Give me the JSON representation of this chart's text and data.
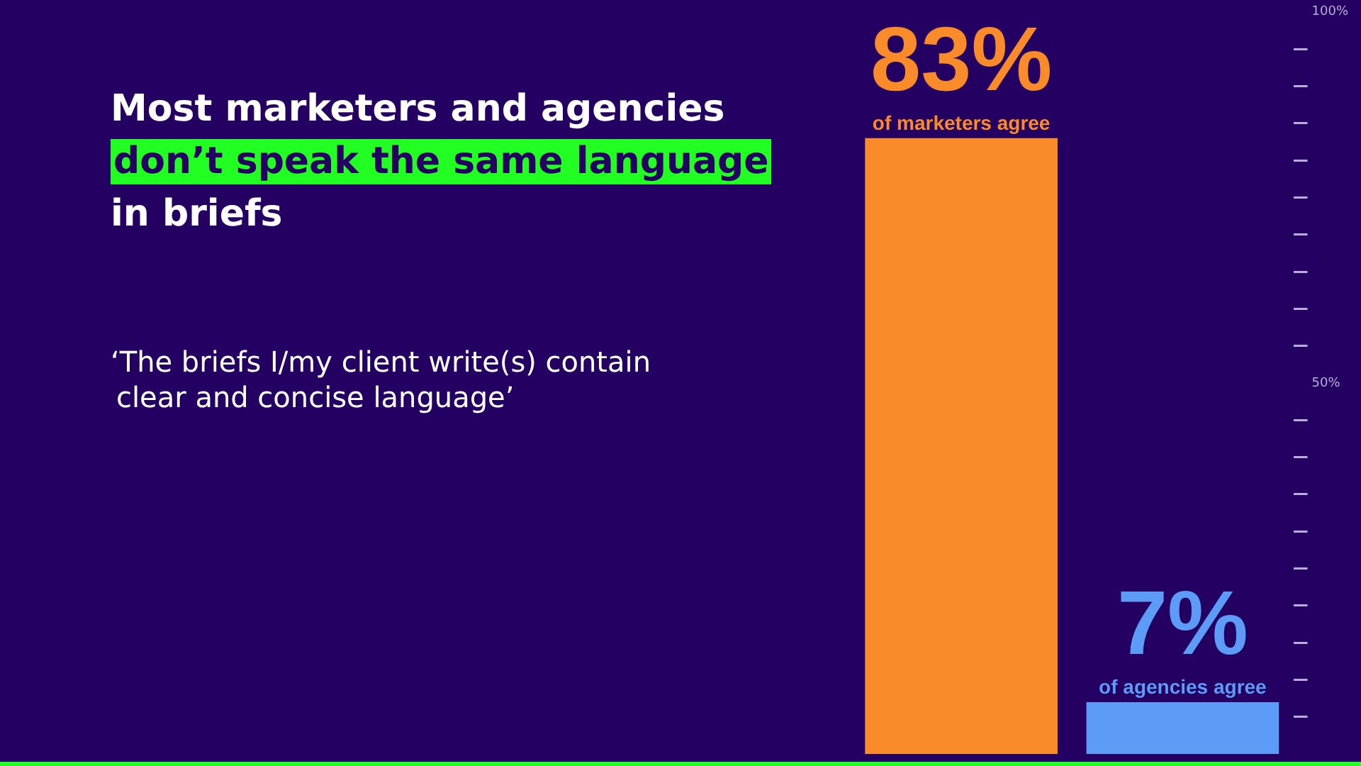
{
  "chart_data": {
    "type": "bar",
    "title": "Most marketers and agencies\ndon’t speak the same language\nin briefs",
    "subtitle": "‘The briefs I/my client write(s) contain\nclear and concise language’",
    "categories": [
      "of marketers agree",
      "of agencies agree"
    ],
    "values": [
      83,
      7
    ],
    "colors": [
      "#f98b2a",
      "#5c9cf6"
    ],
    "value_labels": [
      "83%",
      "7%"
    ],
    "ylim": [
      0,
      100
    ],
    "yticks": [
      {
        "value": 5,
        "label": null
      },
      {
        "value": 10,
        "label": null
      },
      {
        "value": 15,
        "label": null
      },
      {
        "value": 20,
        "label": null
      },
      {
        "value": 25,
        "label": null
      },
      {
        "value": 30,
        "label": null
      },
      {
        "value": 35,
        "label": null
      },
      {
        "value": 40,
        "label": null
      },
      {
        "value": 45,
        "label": null
      },
      {
        "value": 50,
        "label": "50%"
      },
      {
        "value": 55,
        "label": null
      },
      {
        "value": 60,
        "label": null
      },
      {
        "value": 65,
        "label": null
      },
      {
        "value": 70,
        "label": null
      },
      {
        "value": 75,
        "label": null
      },
      {
        "value": 80,
        "label": null
      },
      {
        "value": 85,
        "label": null
      },
      {
        "value": 90,
        "label": null
      },
      {
        "value": 95,
        "label": null
      },
      {
        "value": 100,
        "label": "100%"
      }
    ]
  }
}
